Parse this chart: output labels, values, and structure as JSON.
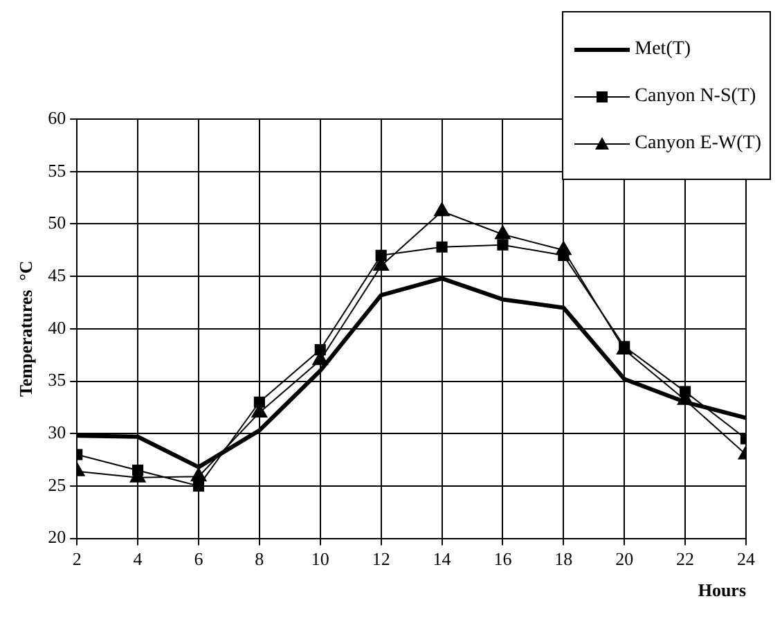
{
  "chart_data": {
    "type": "line",
    "xlabel": "Hours",
    "ylabel": "Temperatures  °C",
    "x": [
      2,
      4,
      6,
      8,
      10,
      12,
      14,
      16,
      18,
      20,
      22,
      24
    ],
    "xlim": [
      2,
      24
    ],
    "xticks": [
      2,
      4,
      6,
      8,
      10,
      12,
      14,
      16,
      18,
      20,
      22,
      24
    ],
    "ylim": [
      20,
      60
    ],
    "yticks": [
      20,
      25,
      30,
      35,
      40,
      45,
      50,
      55,
      60
    ],
    "grid": true,
    "legend": "top right",
    "series": [
      {
        "name": "Met(T)",
        "color": "#000000",
        "marker": "none",
        "values": [
          29.8,
          29.7,
          26.8,
          30.3,
          36,
          43.2,
          44.8,
          42.8,
          42,
          35.2,
          33,
          31.5
        ]
      },
      {
        "name": "Canyon N-S(T)",
        "color": "#000000",
        "marker": "square",
        "values": [
          28,
          26.5,
          25,
          33,
          38,
          47,
          47.8,
          48,
          47,
          38.3,
          34,
          29.5
        ]
      },
      {
        "name": "Canyon E-W(T)",
        "color": "#000000",
        "marker": "triangle",
        "values": [
          26.4,
          25.8,
          25.9,
          32,
          37,
          46,
          51.2,
          49,
          47.5,
          38,
          33.2,
          28
        ]
      }
    ]
  }
}
